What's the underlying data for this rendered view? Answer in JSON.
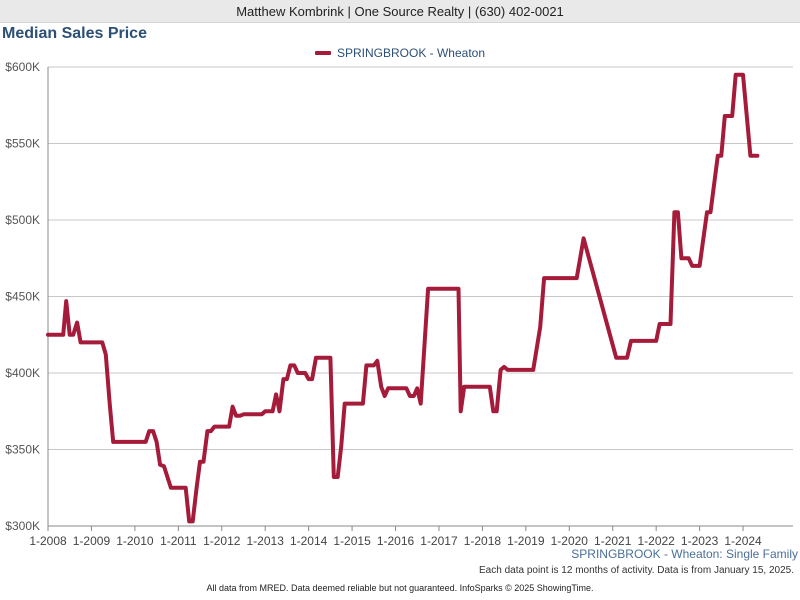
{
  "header": {
    "text": "Matthew Kombrink | One Source Realty | (630) 402-0021"
  },
  "chart_data": {
    "type": "line",
    "title": "Median Sales Price",
    "xlabel": "",
    "ylabel": "",
    "ylim": [
      300000,
      600000
    ],
    "xlim": [
      2008.0,
      2025.0
    ],
    "grid": true,
    "legend_position": "top-center",
    "y_ticks": [
      {
        "value": 300000,
        "label": "$300K"
      },
      {
        "value": 350000,
        "label": "$350K"
      },
      {
        "value": 400000,
        "label": "$400K"
      },
      {
        "value": 450000,
        "label": "$450K"
      },
      {
        "value": 500000,
        "label": "$500K"
      },
      {
        "value": 550000,
        "label": "$550K"
      },
      {
        "value": 600000,
        "label": "$600K"
      }
    ],
    "x_ticks": [
      {
        "value": 2008,
        "label": "1-2008"
      },
      {
        "value": 2009,
        "label": "1-2009"
      },
      {
        "value": 2010,
        "label": "1-2010"
      },
      {
        "value": 2011,
        "label": "1-2011"
      },
      {
        "value": 2012,
        "label": "1-2012"
      },
      {
        "value": 2013,
        "label": "1-2013"
      },
      {
        "value": 2014,
        "label": "1-2014"
      },
      {
        "value": 2015,
        "label": "1-2015"
      },
      {
        "value": 2016,
        "label": "1-2016"
      },
      {
        "value": 2017,
        "label": "1-2017"
      },
      {
        "value": 2018,
        "label": "1-2018"
      },
      {
        "value": 2019,
        "label": "1-2019"
      },
      {
        "value": 2020,
        "label": "1-2020"
      },
      {
        "value": 2021,
        "label": "1-2021"
      },
      {
        "value": 2022,
        "label": "1-2022"
      },
      {
        "value": 2023,
        "label": "1-2023"
      },
      {
        "value": 2024,
        "label": "1-2024"
      }
    ],
    "series": [
      {
        "name": "SPRINGBROOK - Wheaton",
        "color": "#a51c3a",
        "points": [
          [
            2008.0,
            425000
          ],
          [
            2008.35,
            425000
          ],
          [
            2008.42,
            447000
          ],
          [
            2008.5,
            425000
          ],
          [
            2008.58,
            425000
          ],
          [
            2008.67,
            433000
          ],
          [
            2008.75,
            420000
          ],
          [
            2009.25,
            420000
          ],
          [
            2009.33,
            412000
          ],
          [
            2009.42,
            380000
          ],
          [
            2009.5,
            355000
          ],
          [
            2010.25,
            355000
          ],
          [
            2010.33,
            362000
          ],
          [
            2010.42,
            362000
          ],
          [
            2010.5,
            355000
          ],
          [
            2010.58,
            340000
          ],
          [
            2010.67,
            339000
          ],
          [
            2010.83,
            325000
          ],
          [
            2011.17,
            325000
          ],
          [
            2011.25,
            303000
          ],
          [
            2011.33,
            303000
          ],
          [
            2011.42,
            325000
          ],
          [
            2011.5,
            342000
          ],
          [
            2011.58,
            342000
          ],
          [
            2011.67,
            362000
          ],
          [
            2011.75,
            362000
          ],
          [
            2011.83,
            365000
          ],
          [
            2012.17,
            365000
          ],
          [
            2012.25,
            378000
          ],
          [
            2012.33,
            372000
          ],
          [
            2012.42,
            372000
          ],
          [
            2012.5,
            373000
          ],
          [
            2012.92,
            373000
          ],
          [
            2013.0,
            375000
          ],
          [
            2013.17,
            375000
          ],
          [
            2013.25,
            386000
          ],
          [
            2013.33,
            375000
          ],
          [
            2013.42,
            396000
          ],
          [
            2013.5,
            396000
          ],
          [
            2013.58,
            405000
          ],
          [
            2013.67,
            405000
          ],
          [
            2013.75,
            400000
          ],
          [
            2013.92,
            400000
          ],
          [
            2014.0,
            396000
          ],
          [
            2014.08,
            396000
          ],
          [
            2014.17,
            410000
          ],
          [
            2014.5,
            410000
          ],
          [
            2014.58,
            332000
          ],
          [
            2014.67,
            332000
          ],
          [
            2014.75,
            352000
          ],
          [
            2014.83,
            380000
          ],
          [
            2015.25,
            380000
          ],
          [
            2015.33,
            405000
          ],
          [
            2015.5,
            405000
          ],
          [
            2015.58,
            408000
          ],
          [
            2015.67,
            391000
          ],
          [
            2015.75,
            385000
          ],
          [
            2015.83,
            390000
          ],
          [
            2016.25,
            390000
          ],
          [
            2016.33,
            385000
          ],
          [
            2016.42,
            385000
          ],
          [
            2016.5,
            390000
          ],
          [
            2016.58,
            380000
          ],
          [
            2016.75,
            455000
          ],
          [
            2017.45,
            455000
          ],
          [
            2017.5,
            375000
          ],
          [
            2017.58,
            391000
          ],
          [
            2018.17,
            391000
          ],
          [
            2018.25,
            375000
          ],
          [
            2018.33,
            375000
          ],
          [
            2018.42,
            402000
          ],
          [
            2018.5,
            404000
          ],
          [
            2018.58,
            402000
          ],
          [
            2019.17,
            402000
          ],
          [
            2019.33,
            430000
          ],
          [
            2019.42,
            462000
          ],
          [
            2020.17,
            462000
          ],
          [
            2020.33,
            488000
          ],
          [
            2021.08,
            410000
          ],
          [
            2021.33,
            410000
          ],
          [
            2021.42,
            421000
          ],
          [
            2022.0,
            421000
          ],
          [
            2022.08,
            432000
          ],
          [
            2022.33,
            432000
          ],
          [
            2022.42,
            505000
          ],
          [
            2022.5,
            505000
          ],
          [
            2022.58,
            475000
          ],
          [
            2022.75,
            475000
          ],
          [
            2022.83,
            470000
          ],
          [
            2022.92,
            470000
          ],
          [
            2023.0,
            470000
          ],
          [
            2023.17,
            505000
          ],
          [
            2023.25,
            505000
          ],
          [
            2023.42,
            542000
          ],
          [
            2023.5,
            542000
          ],
          [
            2023.58,
            568000
          ],
          [
            2023.75,
            568000
          ],
          [
            2023.83,
            595000
          ],
          [
            2024.0,
            595000
          ],
          [
            2024.17,
            542000
          ],
          [
            2024.33,
            542000
          ]
        ]
      }
    ]
  },
  "caption": "SPRINGBROOK - Wheaton: Single Family",
  "note": "Each data point is 12 months of activity. Data is from January 15, 2025.",
  "footer": "All data from MRED. Data deemed reliable but not guaranteed. InfoSparks © 2025 ShowingTime."
}
